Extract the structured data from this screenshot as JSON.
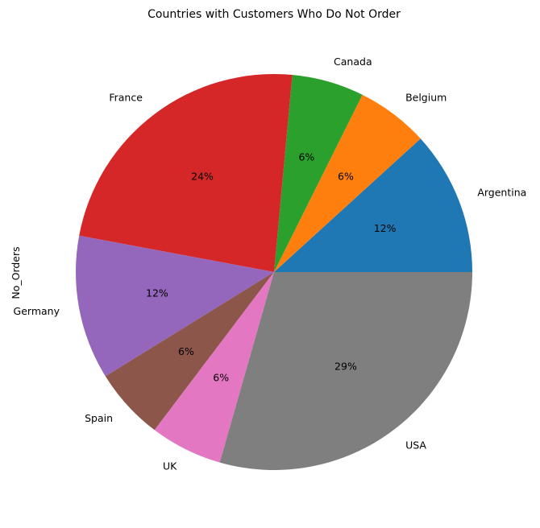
{
  "chart_data": {
    "type": "pie",
    "title": "Countries with Customers Who Do Not Order",
    "ylabel": "No_Orders",
    "categories": [
      "Argentina",
      "Belgium",
      "Canada",
      "France",
      "Germany",
      "Spain",
      "UK",
      "USA"
    ],
    "values": [
      2,
      1,
      1,
      4,
      2,
      1,
      1,
      5
    ],
    "percent_labels": [
      "12%",
      "6%",
      "6%",
      "24%",
      "12%",
      "6%",
      "6%",
      "29%"
    ],
    "colors": [
      "#1f77b4",
      "#ff7f0e",
      "#2ca02c",
      "#d62728",
      "#9467bd",
      "#8c564b",
      "#e377c2",
      "#7f7f7f"
    ],
    "start_angle_deg": 0,
    "direction": "counterclockwise"
  }
}
